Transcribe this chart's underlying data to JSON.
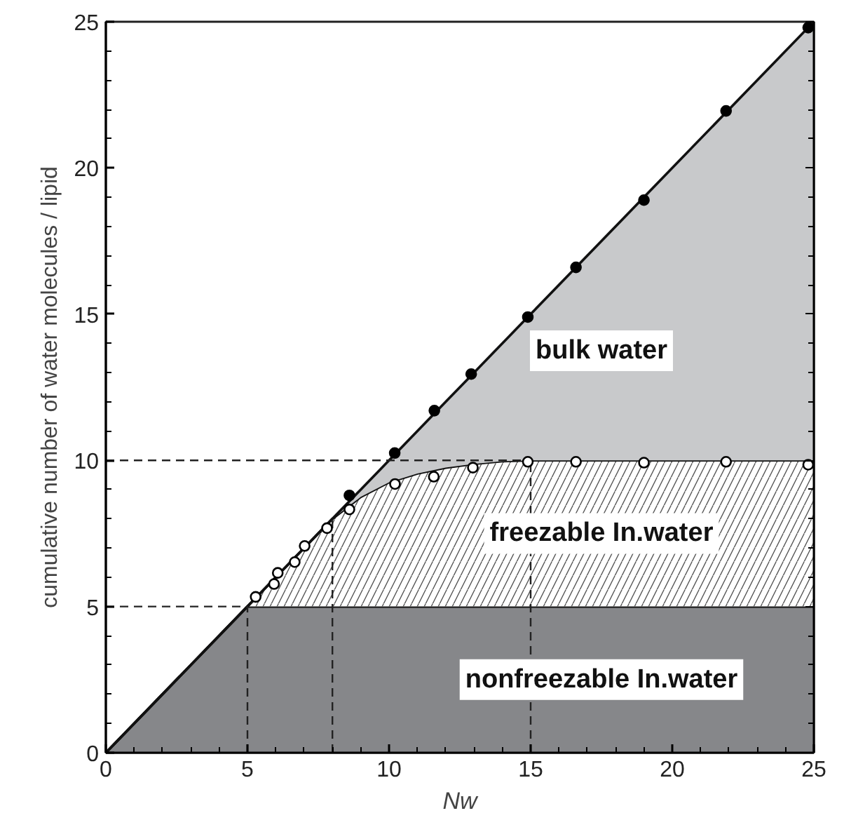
{
  "chart_data": {
    "type": "area",
    "stacked": true,
    "xlabel": "Nw",
    "ylabel": "cumulative number of water molecules / lipid",
    "xlim": [
      0,
      25
    ],
    "ylim": [
      0,
      25
    ],
    "xticks": [
      0,
      5,
      10,
      15,
      20,
      25
    ],
    "yticks": [
      0,
      5,
      10,
      15,
      20,
      25
    ],
    "grid": false,
    "legend": false,
    "x": [
      0,
      5,
      8,
      9,
      10,
      11,
      12,
      13,
      14,
      15,
      25
    ],
    "series": [
      {
        "name": "nonfreezable In.water",
        "color": "#86878a",
        "values": [
          0,
          5,
          5,
          5,
          5,
          5,
          5,
          5,
          5,
          5,
          5
        ]
      },
      {
        "name": "freezable In.water",
        "color": "#ffffff",
        "values": [
          0,
          0,
          3,
          3.75,
          4.25,
          4.55,
          4.75,
          4.88,
          4.97,
          5,
          5
        ]
      },
      {
        "name": "bulk water",
        "color": "#c8c9cb",
        "values": [
          0,
          0,
          0,
          0.25,
          0.75,
          1.45,
          2.25,
          3.12,
          4.03,
          5,
          15
        ]
      },
      {
        "type": "scatter",
        "color": "#ffffff",
        "marker": "circle",
        "x": [
          5.29,
          5.94,
          6.07,
          6.67,
          7.02,
          7.81,
          8.6,
          10.21,
          11.58,
          12.96,
          14.9,
          16.6,
          19.0,
          21.9,
          24.8
        ],
        "values": [
          5.33,
          5.77,
          6.15,
          6.52,
          7.07,
          7.68,
          8.32,
          9.19,
          9.44,
          9.75,
          9.95,
          9.95,
          9.92,
          9.95,
          9.85
        ]
      },
      {
        "type": "scatter",
        "color": "#000000",
        "marker": "circle",
        "x": [
          8.6,
          10.2,
          11.6,
          12.9,
          14.9,
          16.6,
          19.0,
          21.9,
          24.8
        ],
        "values": [
          8.8,
          10.25,
          11.7,
          12.95,
          14.9,
          16.6,
          18.9,
          21.95,
          24.8
        ]
      }
    ],
    "ref_lines": [
      {
        "axis": "y",
        "value": 5,
        "line_style": "dashed"
      },
      {
        "axis": "y",
        "value": 10,
        "line_style": "dashed"
      },
      {
        "axis": "x",
        "value": 5,
        "line_style": "dashed"
      },
      {
        "axis": "x",
        "value": 8,
        "line_style": "dashed"
      },
      {
        "axis": "x",
        "value": 15,
        "line_style": "dashed"
      }
    ]
  }
}
